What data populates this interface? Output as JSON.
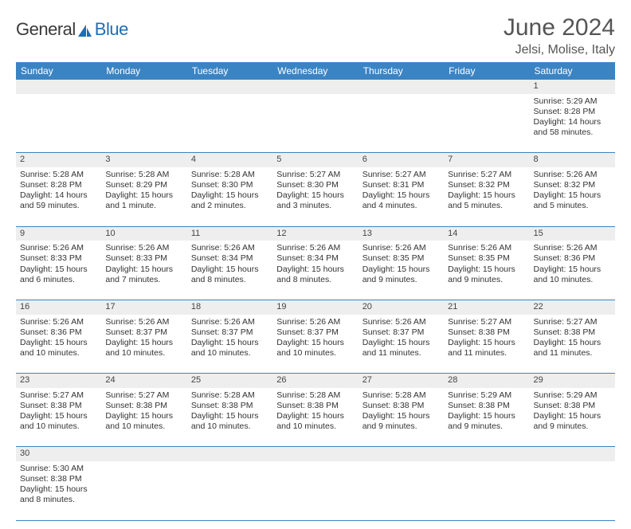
{
  "logo": {
    "word1": "General",
    "word2": "Blue"
  },
  "title": "June 2024",
  "location": "Jelsi, Molise, Italy",
  "colors": {
    "header_bg": "#3b84c4",
    "header_text": "#ffffff",
    "daynum_bg": "#eeeeee",
    "row_border": "#3b84c4",
    "title_color": "#555555",
    "logo_gray": "#3a3a3a",
    "logo_blue": "#1f6db5"
  },
  "day_headers": [
    "Sunday",
    "Monday",
    "Tuesday",
    "Wednesday",
    "Thursday",
    "Friday",
    "Saturday"
  ],
  "weeks": [
    {
      "nums": [
        "",
        "",
        "",
        "",
        "",
        "",
        "1"
      ],
      "cells": [
        null,
        null,
        null,
        null,
        null,
        null,
        {
          "sunrise": "Sunrise: 5:29 AM",
          "sunset": "Sunset: 8:28 PM",
          "daylight": "Daylight: 14 hours and 58 minutes."
        }
      ]
    },
    {
      "nums": [
        "2",
        "3",
        "4",
        "5",
        "6",
        "7",
        "8"
      ],
      "cells": [
        {
          "sunrise": "Sunrise: 5:28 AM",
          "sunset": "Sunset: 8:28 PM",
          "daylight": "Daylight: 14 hours and 59 minutes."
        },
        {
          "sunrise": "Sunrise: 5:28 AM",
          "sunset": "Sunset: 8:29 PM",
          "daylight": "Daylight: 15 hours and 1 minute."
        },
        {
          "sunrise": "Sunrise: 5:28 AM",
          "sunset": "Sunset: 8:30 PM",
          "daylight": "Daylight: 15 hours and 2 minutes."
        },
        {
          "sunrise": "Sunrise: 5:27 AM",
          "sunset": "Sunset: 8:30 PM",
          "daylight": "Daylight: 15 hours and 3 minutes."
        },
        {
          "sunrise": "Sunrise: 5:27 AM",
          "sunset": "Sunset: 8:31 PM",
          "daylight": "Daylight: 15 hours and 4 minutes."
        },
        {
          "sunrise": "Sunrise: 5:27 AM",
          "sunset": "Sunset: 8:32 PM",
          "daylight": "Daylight: 15 hours and 5 minutes."
        },
        {
          "sunrise": "Sunrise: 5:26 AM",
          "sunset": "Sunset: 8:32 PM",
          "daylight": "Daylight: 15 hours and 5 minutes."
        }
      ]
    },
    {
      "nums": [
        "9",
        "10",
        "11",
        "12",
        "13",
        "14",
        "15"
      ],
      "cells": [
        {
          "sunrise": "Sunrise: 5:26 AM",
          "sunset": "Sunset: 8:33 PM",
          "daylight": "Daylight: 15 hours and 6 minutes."
        },
        {
          "sunrise": "Sunrise: 5:26 AM",
          "sunset": "Sunset: 8:33 PM",
          "daylight": "Daylight: 15 hours and 7 minutes."
        },
        {
          "sunrise": "Sunrise: 5:26 AM",
          "sunset": "Sunset: 8:34 PM",
          "daylight": "Daylight: 15 hours and 8 minutes."
        },
        {
          "sunrise": "Sunrise: 5:26 AM",
          "sunset": "Sunset: 8:34 PM",
          "daylight": "Daylight: 15 hours and 8 minutes."
        },
        {
          "sunrise": "Sunrise: 5:26 AM",
          "sunset": "Sunset: 8:35 PM",
          "daylight": "Daylight: 15 hours and 9 minutes."
        },
        {
          "sunrise": "Sunrise: 5:26 AM",
          "sunset": "Sunset: 8:35 PM",
          "daylight": "Daylight: 15 hours and 9 minutes."
        },
        {
          "sunrise": "Sunrise: 5:26 AM",
          "sunset": "Sunset: 8:36 PM",
          "daylight": "Daylight: 15 hours and 10 minutes."
        }
      ]
    },
    {
      "nums": [
        "16",
        "17",
        "18",
        "19",
        "20",
        "21",
        "22"
      ],
      "cells": [
        {
          "sunrise": "Sunrise: 5:26 AM",
          "sunset": "Sunset: 8:36 PM",
          "daylight": "Daylight: 15 hours and 10 minutes."
        },
        {
          "sunrise": "Sunrise: 5:26 AM",
          "sunset": "Sunset: 8:37 PM",
          "daylight": "Daylight: 15 hours and 10 minutes."
        },
        {
          "sunrise": "Sunrise: 5:26 AM",
          "sunset": "Sunset: 8:37 PM",
          "daylight": "Daylight: 15 hours and 10 minutes."
        },
        {
          "sunrise": "Sunrise: 5:26 AM",
          "sunset": "Sunset: 8:37 PM",
          "daylight": "Daylight: 15 hours and 10 minutes."
        },
        {
          "sunrise": "Sunrise: 5:26 AM",
          "sunset": "Sunset: 8:37 PM",
          "daylight": "Daylight: 15 hours and 11 minutes."
        },
        {
          "sunrise": "Sunrise: 5:27 AM",
          "sunset": "Sunset: 8:38 PM",
          "daylight": "Daylight: 15 hours and 11 minutes."
        },
        {
          "sunrise": "Sunrise: 5:27 AM",
          "sunset": "Sunset: 8:38 PM",
          "daylight": "Daylight: 15 hours and 11 minutes."
        }
      ]
    },
    {
      "nums": [
        "23",
        "24",
        "25",
        "26",
        "27",
        "28",
        "29"
      ],
      "cells": [
        {
          "sunrise": "Sunrise: 5:27 AM",
          "sunset": "Sunset: 8:38 PM",
          "daylight": "Daylight: 15 hours and 10 minutes."
        },
        {
          "sunrise": "Sunrise: 5:27 AM",
          "sunset": "Sunset: 8:38 PM",
          "daylight": "Daylight: 15 hours and 10 minutes."
        },
        {
          "sunrise": "Sunrise: 5:28 AM",
          "sunset": "Sunset: 8:38 PM",
          "daylight": "Daylight: 15 hours and 10 minutes."
        },
        {
          "sunrise": "Sunrise: 5:28 AM",
          "sunset": "Sunset: 8:38 PM",
          "daylight": "Daylight: 15 hours and 10 minutes."
        },
        {
          "sunrise": "Sunrise: 5:28 AM",
          "sunset": "Sunset: 8:38 PM",
          "daylight": "Daylight: 15 hours and 9 minutes."
        },
        {
          "sunrise": "Sunrise: 5:29 AM",
          "sunset": "Sunset: 8:38 PM",
          "daylight": "Daylight: 15 hours and 9 minutes."
        },
        {
          "sunrise": "Sunrise: 5:29 AM",
          "sunset": "Sunset: 8:38 PM",
          "daylight": "Daylight: 15 hours and 9 minutes."
        }
      ]
    },
    {
      "nums": [
        "30",
        "",
        "",
        "",
        "",
        "",
        ""
      ],
      "cells": [
        {
          "sunrise": "Sunrise: 5:30 AM",
          "sunset": "Sunset: 8:38 PM",
          "daylight": "Daylight: 15 hours and 8 minutes."
        },
        null,
        null,
        null,
        null,
        null,
        null
      ]
    }
  ]
}
